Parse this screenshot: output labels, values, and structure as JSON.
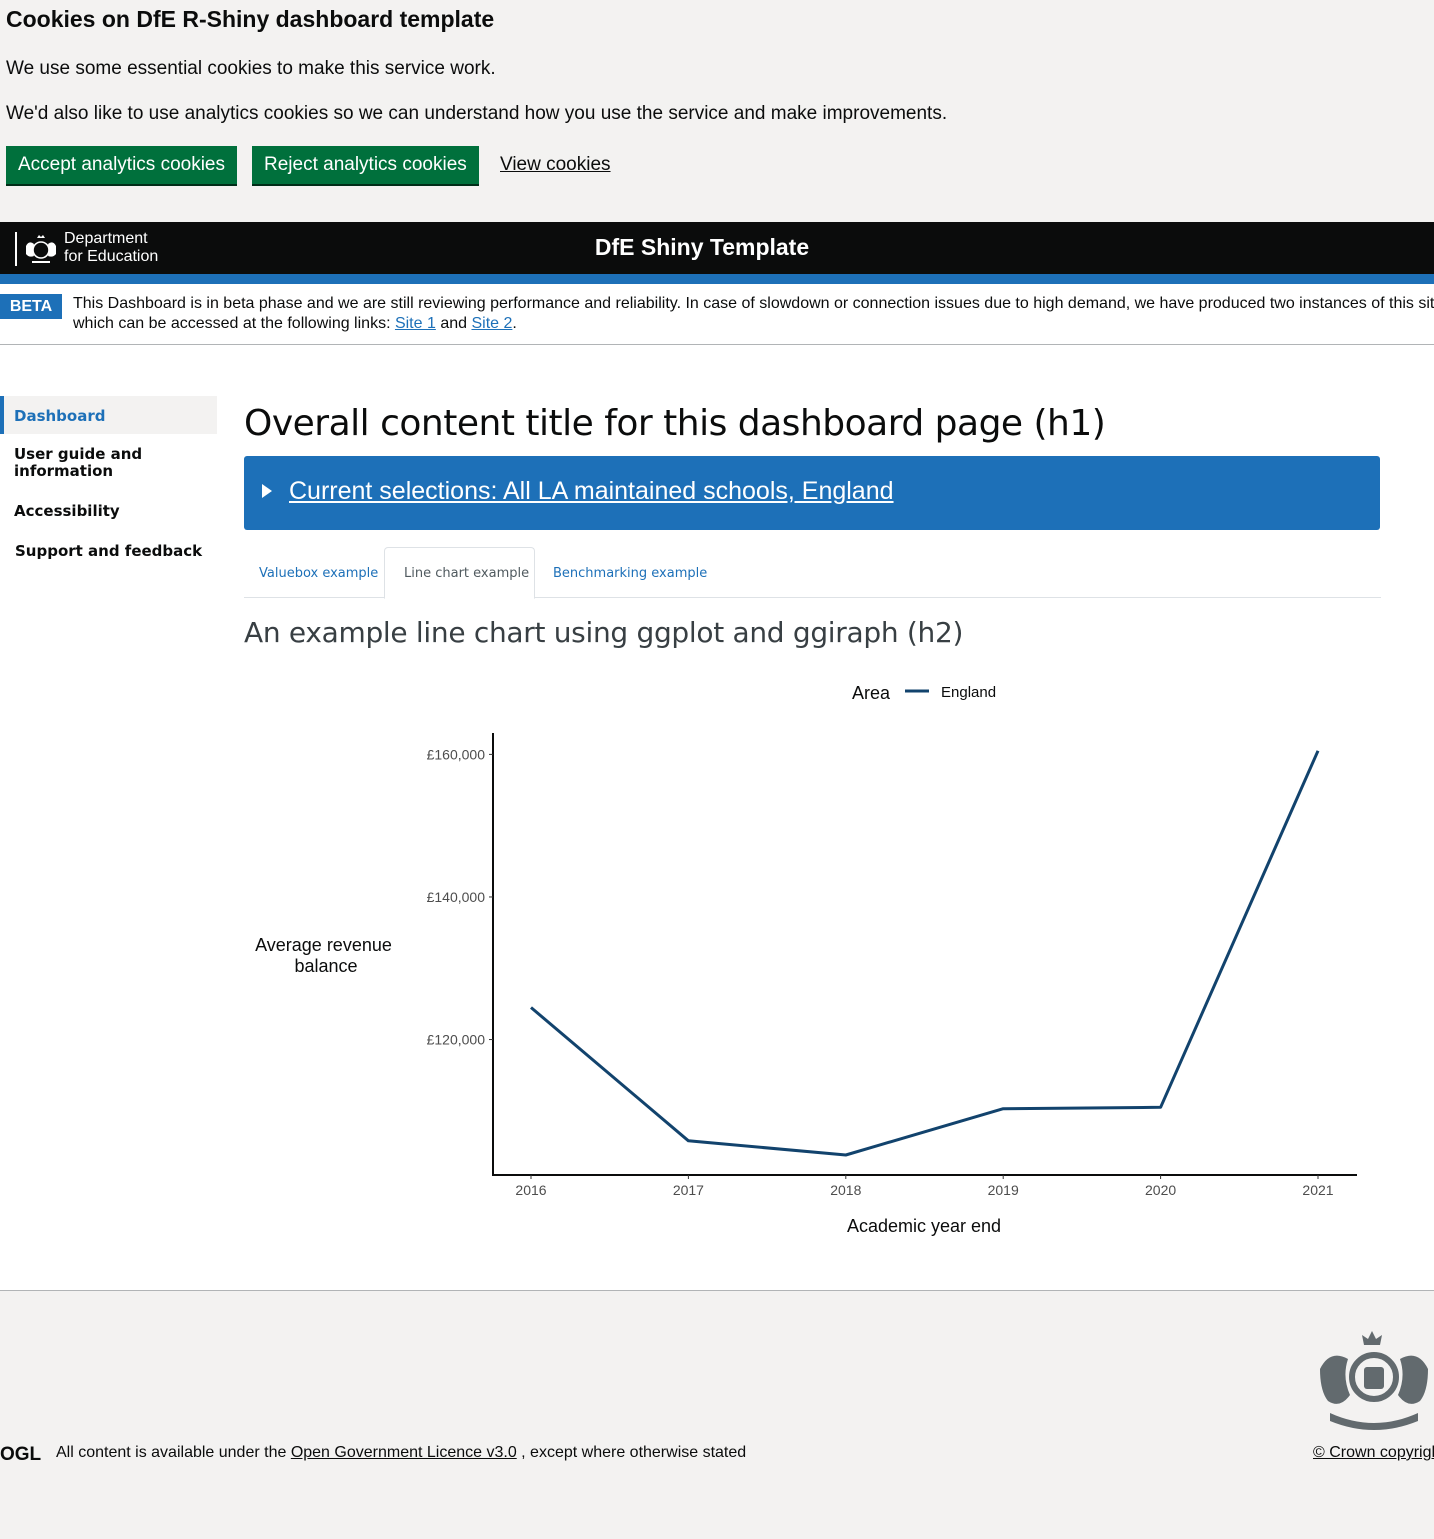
{
  "cookie_banner": {
    "title": "Cookies on DfE R-Shiny dashboard template",
    "paragraph1": "We use some essential cookies to make this service work.",
    "paragraph2": "We'd also like to use analytics cookies so we can understand how you use the service and make improvements.",
    "accept_label": "Accept analytics cookies",
    "reject_label": "Reject analytics cookies",
    "view_label": "View cookies"
  },
  "header": {
    "logo_line1": "Department",
    "logo_line2": "for Education",
    "title": "DfE Shiny Template"
  },
  "beta_banner": {
    "tag": "BETA",
    "text_line1": "This Dashboard is in beta phase and we are still reviewing performance and reliability. In case of slowdown or connection issues due to high demand, we have produced two instances of this sit",
    "text_line2_prefix": "which can be accessed at the following links: ",
    "site1_label": "Site 1",
    "and": " and ",
    "site2_label": "Site 2",
    "period": "."
  },
  "sidenav": {
    "items": [
      {
        "label": "Dashboard"
      },
      {
        "label": "User guide and information"
      },
      {
        "label": "Accessibility"
      },
      {
        "label": "Support and feedback"
      }
    ]
  },
  "main": {
    "title": "Overall content title for this dashboard page (h1)",
    "selections_label": "Current selections: All LA maintained schools, England",
    "tabs": [
      {
        "label": "Valuebox example"
      },
      {
        "label": "Line chart example"
      },
      {
        "label": "Benchmarking example"
      }
    ],
    "active_tab": "Line chart example",
    "h2": "An example line chart using ggplot and ggiraph (h2)"
  },
  "chart_data": {
    "type": "line",
    "legend_title": "Area",
    "legend_position": "top",
    "series": [
      {
        "name": "England",
        "color": "#12436d",
        "x": [
          2016,
          2017,
          2018,
          2019,
          2020,
          2021
        ],
        "y": [
          124500,
          105800,
          103800,
          110300,
          110500,
          160500
        ]
      }
    ],
    "xlabel": "Academic year end",
    "ylabel": "Average revenue balance",
    "x_ticks": [
      "2016",
      "2017",
      "2018",
      "2019",
      "2020",
      "2021"
    ],
    "y_ticks": [
      "£120,000",
      "£140,000",
      "£160,000"
    ],
    "y_tick_values": [
      120000,
      140000,
      160000
    ],
    "ylim": [
      101000,
      163000
    ],
    "grid": false
  },
  "footer": {
    "ogl_label": "OGL",
    "licence_prefix": "All content is available under the ",
    "licence_link": "Open Government Licence v3.0",
    "licence_suffix": " , except where otherwise stated",
    "crown_label": "© Crown copyright"
  },
  "colors": {
    "accent": "#1d70b8",
    "button_green": "#00703c",
    "chart_line": "#12436d",
    "header_black": "#0b0c0c"
  }
}
